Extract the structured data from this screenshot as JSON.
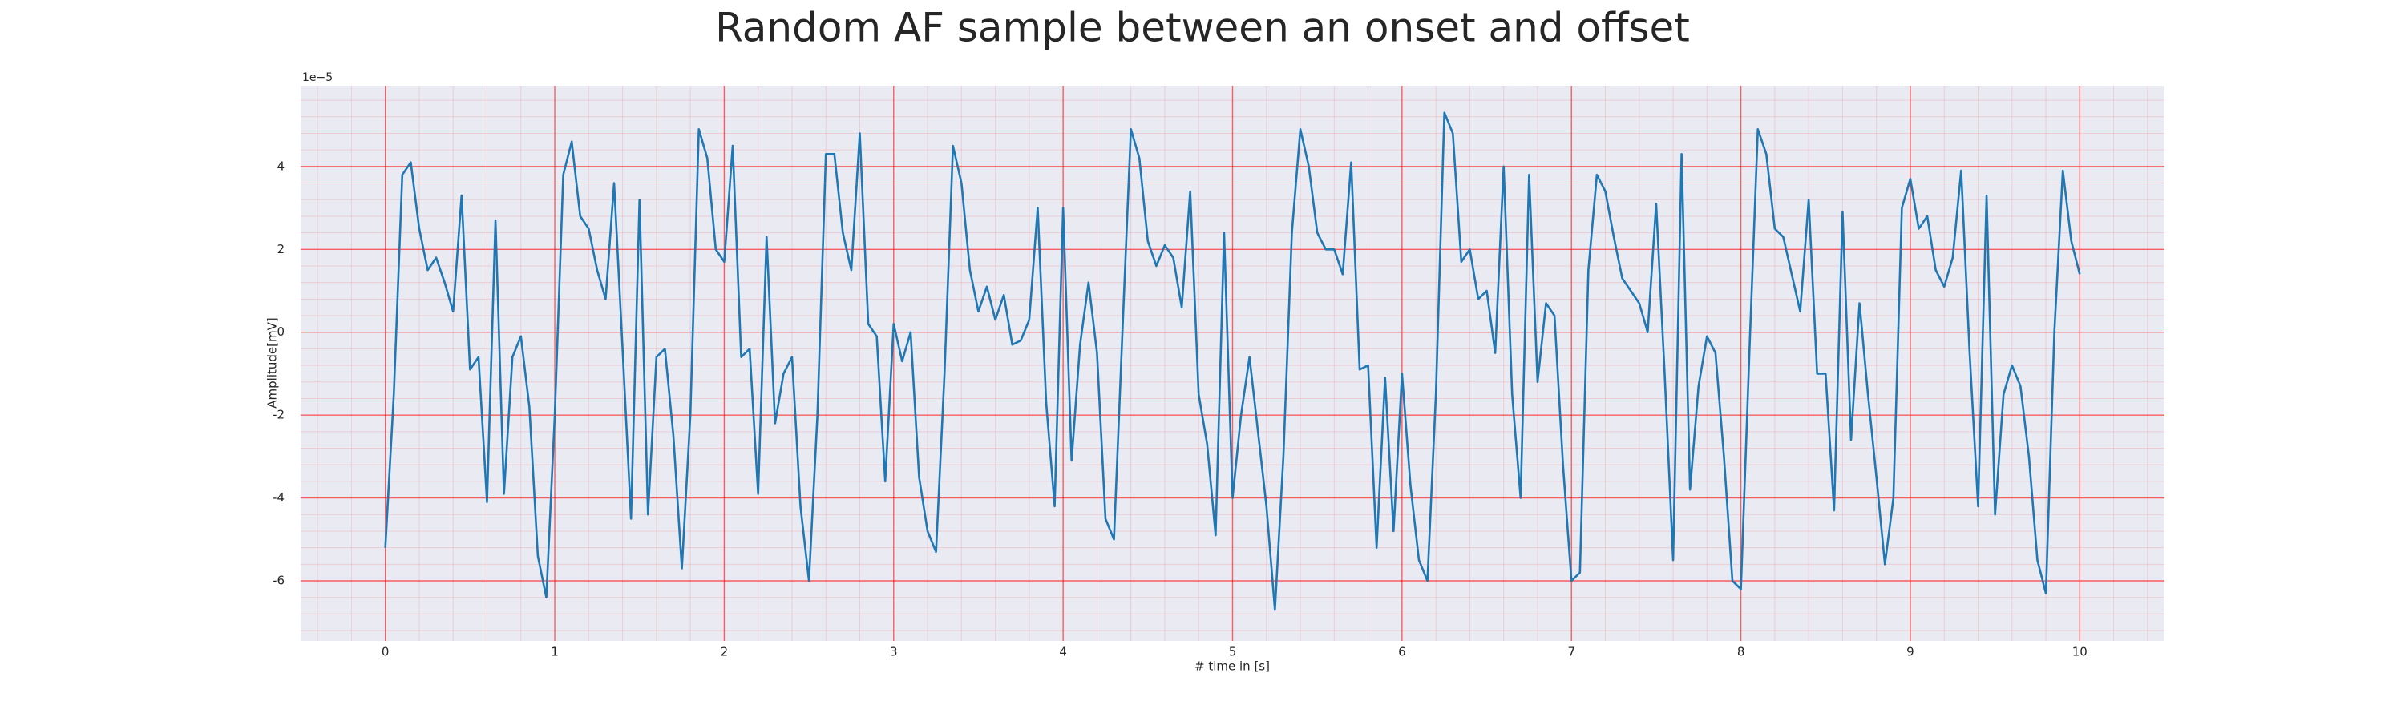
{
  "chart_data": {
    "type": "line",
    "title": "Random AF sample between an onset and offset",
    "xlabel": "# time in [s]",
    "ylabel": "Amplitude[mV]",
    "y_offset_label": "1e−5",
    "grid": true,
    "minor_grid": true,
    "grid_color": "#ff0000",
    "background": "#eaeaf2",
    "xlim": [
      -0.5,
      10.5
    ],
    "xticks": [
      0,
      1,
      2,
      3,
      4,
      5,
      6,
      7,
      8,
      9,
      10
    ],
    "ylim": [
      -7.45,
      5.95
    ],
    "yticks": [
      -6,
      -4,
      -2,
      0,
      2,
      4
    ],
    "x": [
      0,
      0.05,
      0.1,
      0.15,
      0.2,
      0.25,
      0.3,
      0.35,
      0.4,
      0.45,
      0.5,
      0.55,
      0.6,
      0.65,
      0.7,
      0.75,
      0.8,
      0.85,
      0.9,
      0.95,
      1,
      1.05,
      1.1,
      1.15,
      1.2,
      1.25,
      1.3,
      1.35,
      1.4,
      1.45,
      1.5,
      1.55,
      1.6,
      1.65,
      1.7,
      1.75,
      1.8,
      1.85,
      1.9,
      1.95,
      2,
      2.05,
      2.1,
      2.15,
      2.2,
      2.25,
      2.3,
      2.35,
      2.4,
      2.45,
      2.5,
      2.55,
      2.6,
      2.65,
      2.7,
      2.75,
      2.8,
      2.85,
      2.9,
      2.95,
      3,
      3.05,
      3.1,
      3.15,
      3.2,
      3.25,
      3.3,
      3.35,
      3.4,
      3.45,
      3.5,
      3.55,
      3.6,
      3.65,
      3.7,
      3.75,
      3.8,
      3.85,
      3.9,
      3.95,
      4,
      4.05,
      4.1,
      4.15,
      4.2,
      4.25,
      4.3,
      4.35,
      4.4,
      4.45,
      4.5,
      4.55,
      4.6,
      4.65,
      4.7,
      4.75,
      4.8,
      4.85,
      4.9,
      4.95,
      5,
      5.05,
      5.1,
      5.15,
      5.2,
      5.25,
      5.3,
      5.35,
      5.4,
      5.45,
      5.5,
      5.55,
      5.6,
      5.65,
      5.7,
      5.75,
      5.8,
      5.85,
      5.9,
      5.95,
      6,
      6.05,
      6.1,
      6.15,
      6.2,
      6.25,
      6.3,
      6.35,
      6.4,
      6.45,
      6.5,
      6.55,
      6.6,
      6.65,
      6.7,
      6.75,
      6.8,
      6.85,
      6.9,
      6.95,
      7,
      7.05,
      7.1,
      7.15,
      7.2,
      7.25,
      7.3,
      7.35,
      7.4,
      7.45,
      7.5,
      7.55,
      7.6,
      7.65,
      7.7,
      7.75,
      7.8,
      7.85,
      7.9,
      7.95,
      8,
      8.05,
      8.1,
      8.15,
      8.2,
      8.25,
      8.3,
      8.35,
      8.4,
      8.45,
      8.5,
      8.55,
      8.6,
      8.65,
      8.7,
      8.75,
      8.8,
      8.85,
      8.9,
      8.95,
      9,
      9.05,
      9.1,
      9.15,
      9.2,
      9.25,
      9.3,
      9.35,
      9.4,
      9.45,
      9.5,
      9.55,
      9.6,
      9.65,
      9.7,
      9.75,
      9.8,
      9.85,
      9.9,
      9.95,
      10
    ],
    "series": [
      {
        "color": "#1f77b4",
        "values": [
          -5.2,
          -1.5,
          3.8,
          4.1,
          2.5,
          1.5,
          1.8,
          1.2,
          0.5,
          3.3,
          -0.9,
          -0.6,
          -4.1,
          2.7,
          -3.9,
          -0.6,
          -0.1,
          -1.8,
          -5.4,
          -6.4,
          -2.0,
          3.8,
          4.6,
          2.8,
          2.5,
          1.5,
          0.8,
          3.6,
          -0.4,
          -4.5,
          3.2,
          -4.4,
          -0.6,
          -0.4,
          -2.5,
          -5.7,
          -2.0,
          4.9,
          4.2,
          2.0,
          1.7,
          4.5,
          -0.6,
          -0.4,
          -3.9,
          2.3,
          -2.2,
          -1.0,
          -0.6,
          -4.2,
          -6.0,
          -2.0,
          4.3,
          4.3,
          2.4,
          1.5,
          4.8,
          0.2,
          -0.1,
          -3.6,
          0.2,
          -0.7,
          0.0,
          -3.5,
          -4.8,
          -5.3,
          -1.0,
          4.5,
          3.6,
          1.5,
          0.5,
          1.1,
          0.3,
          0.9,
          -0.3,
          -0.2,
          0.3,
          3.0,
          -1.7,
          -4.2,
          3.0,
          -3.1,
          -0.3,
          1.2,
          -0.5,
          -4.5,
          -5.0,
          0.0,
          4.9,
          4.2,
          2.2,
          1.6,
          2.1,
          1.8,
          0.6,
          3.4,
          -1.5,
          -2.7,
          -4.9,
          2.4,
          -4.0,
          -2.0,
          -0.6,
          -2.4,
          -4.2,
          -6.7,
          -3.0,
          2.4,
          4.9,
          4.0,
          2.4,
          2.0,
          2.0,
          1.4,
          4.1,
          -0.9,
          -0.8,
          -5.2,
          -1.1,
          -4.8,
          -1.0,
          -3.7,
          -5.5,
          -6.0,
          -1.5,
          5.3,
          4.8,
          1.7,
          2.0,
          0.8,
          1.0,
          -0.5,
          4.0,
          -1.5,
          -4.0,
          3.8,
          -1.2,
          0.7,
          0.4,
          -3.2,
          -6.0,
          -5.8,
          1.5,
          3.8,
          3.4,
          2.3,
          1.3,
          1.0,
          0.7,
          0.0,
          3.1,
          -1.0,
          -5.5,
          4.3,
          -3.8,
          -1.3,
          -0.1,
          -0.5,
          -3.0,
          -6.0,
          -6.2,
          -0.5,
          4.9,
          4.3,
          2.5,
          2.3,
          1.4,
          0.5,
          3.2,
          -1.0,
          -1.0,
          -4.3,
          2.9,
          -2.6,
          0.7,
          -1.5,
          -3.5,
          -5.6,
          -4.0,
          3.0,
          3.7,
          2.5,
          2.8,
          1.5,
          1.1,
          1.8,
          3.9,
          -0.5,
          -4.2,
          3.3,
          -4.4,
          -1.5,
          -0.8,
          -1.3,
          -3.0,
          -5.5,
          -6.3,
          0.0,
          3.9,
          2.2,
          1.4
        ]
      }
    ]
  }
}
